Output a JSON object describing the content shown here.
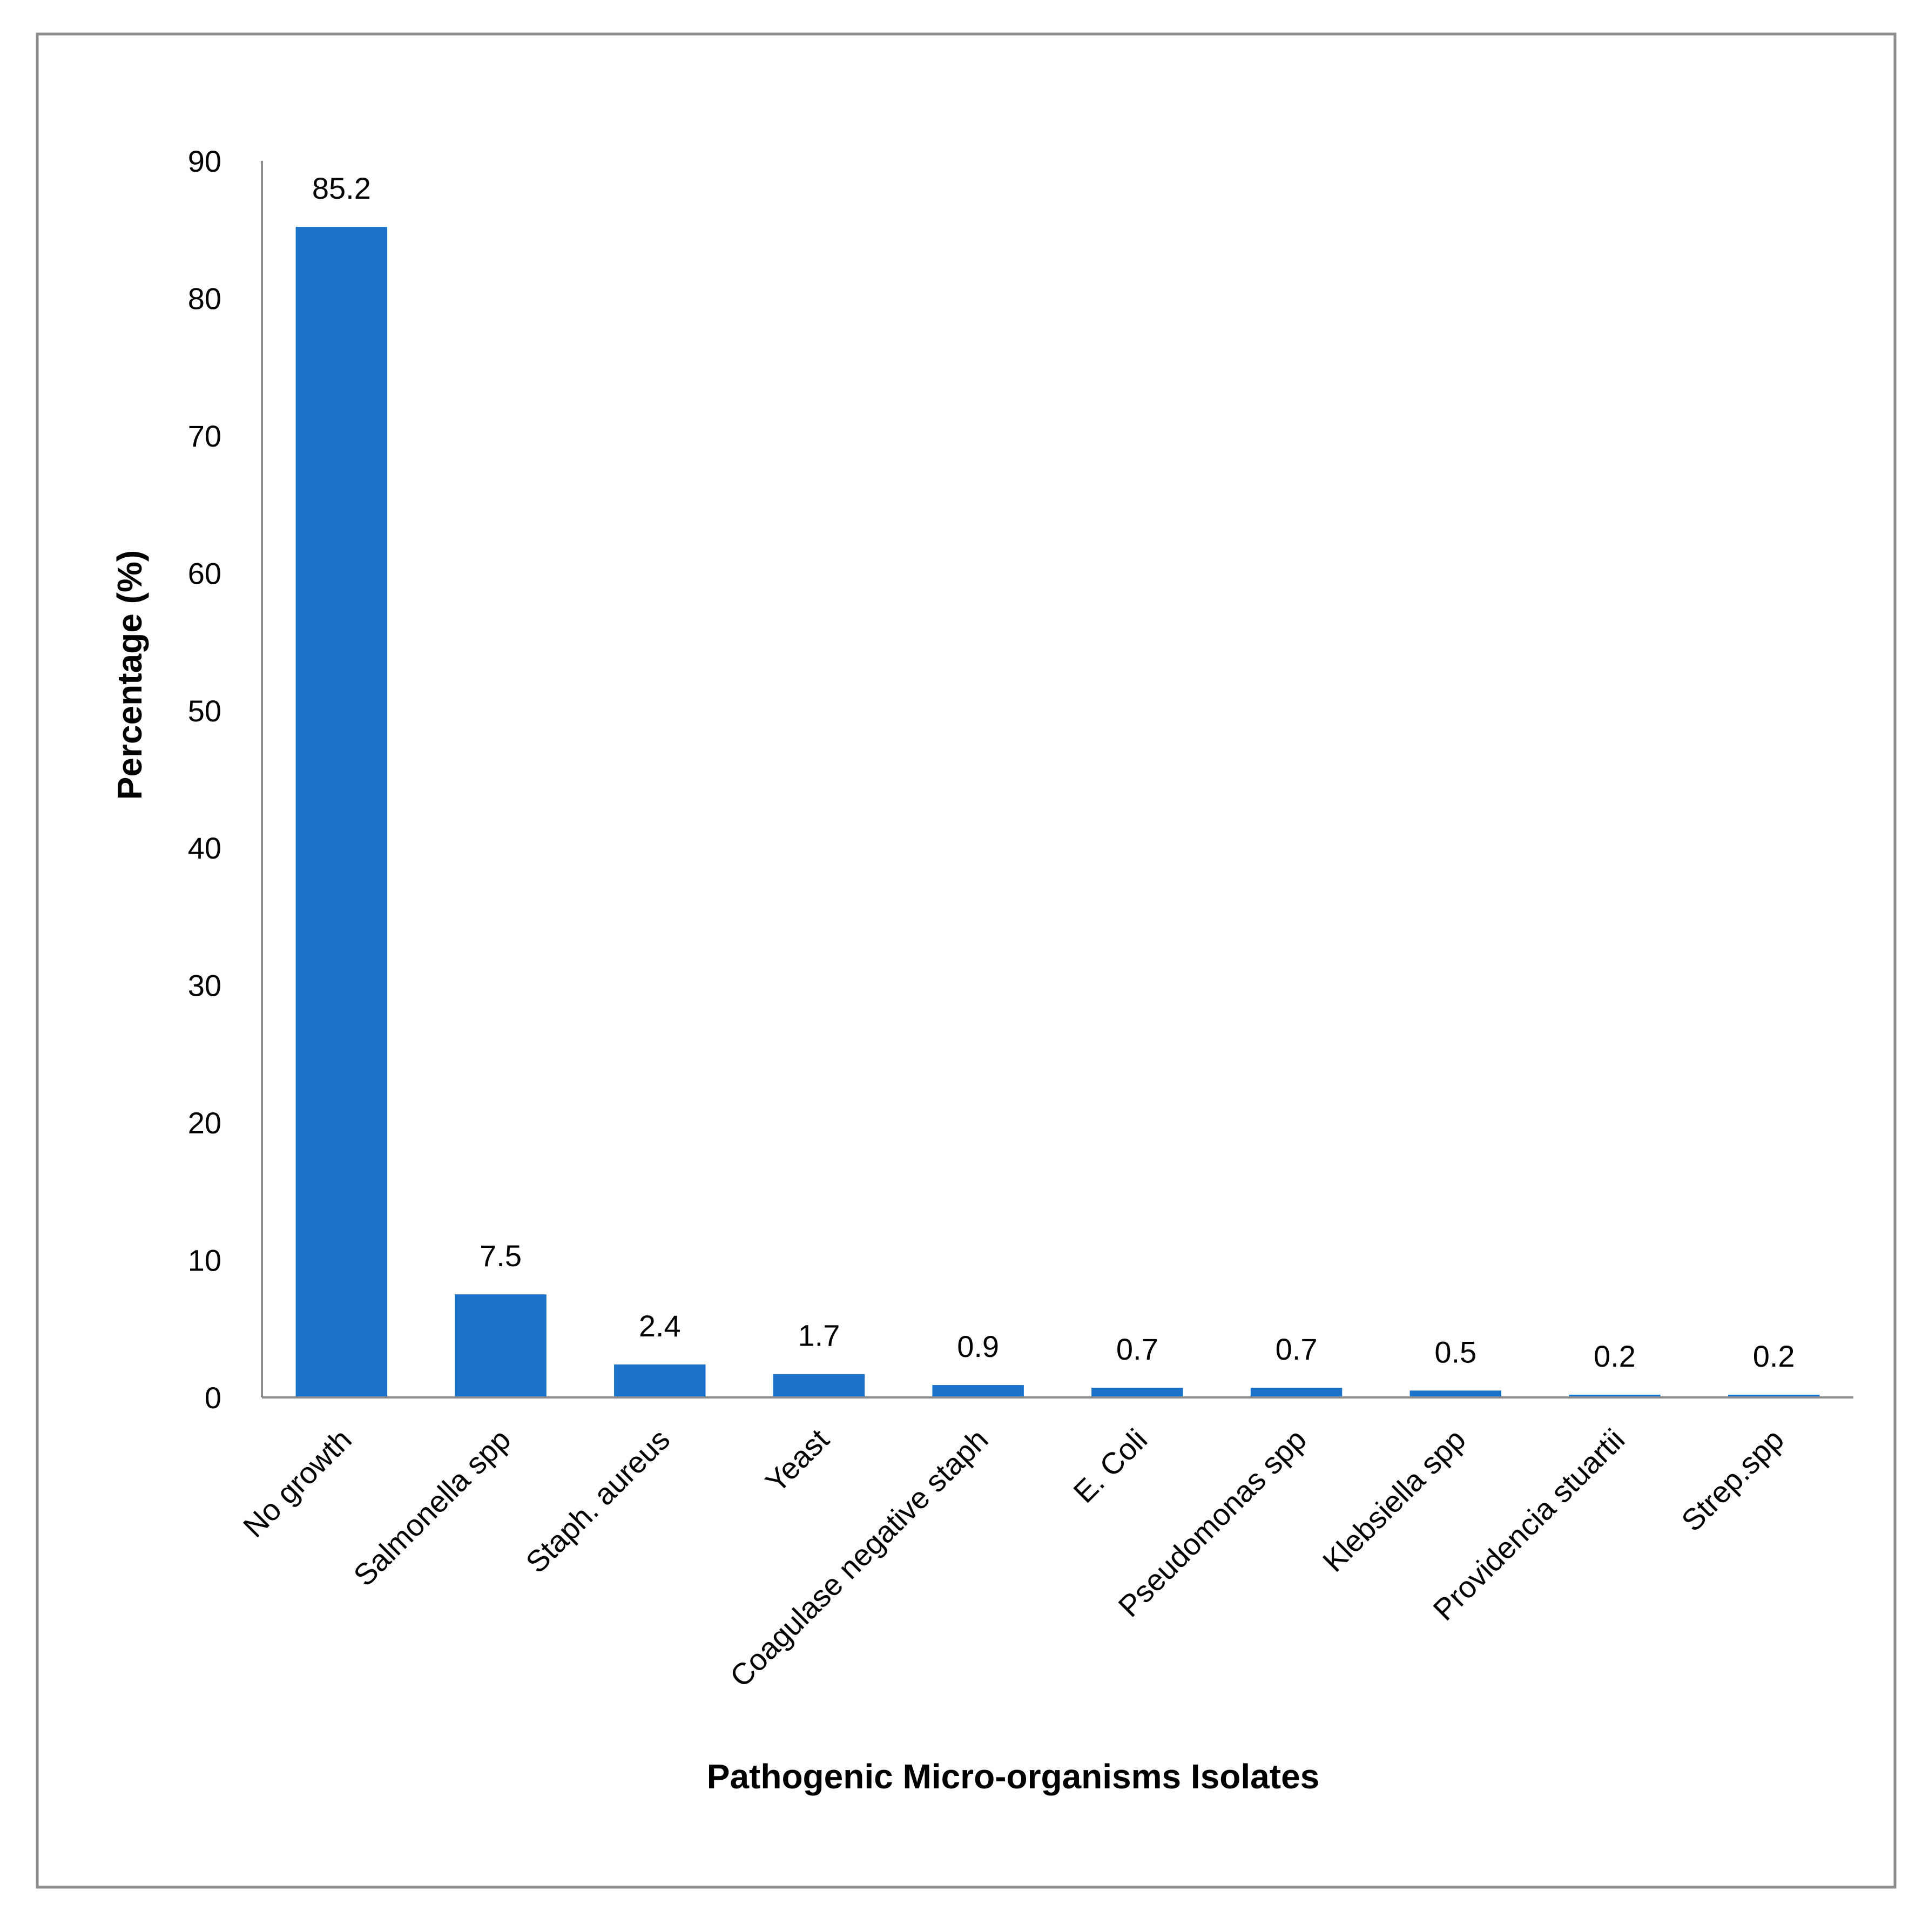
{
  "chart_data": {
    "type": "bar",
    "title": "",
    "xlabel": "Pathogenic Micro-organisms Isolates",
    "ylabel": "Percentage (%)",
    "ylim": [
      0,
      90
    ],
    "yticks": [
      0,
      10,
      20,
      30,
      40,
      50,
      60,
      70,
      80,
      90
    ],
    "categories": [
      "No growth",
      "Salmonella spp",
      "Staph. aureus",
      "Yeast",
      "Coagulase negative staph",
      "E. Coli",
      "Pseudomonas spp",
      "Klebsiella spp",
      "Providencia stuartii",
      "Strep.spp"
    ],
    "values": [
      85.2,
      7.5,
      2.4,
      1.7,
      0.9,
      0.7,
      0.7,
      0.5,
      0.2,
      0.2
    ],
    "data_labels": [
      "85.2",
      "7.5",
      "2.4",
      "1.7",
      "0.9",
      "0.7",
      "0.7",
      "0.5",
      "0.2",
      "0.2"
    ],
    "bar_color": "#1B72C8",
    "axis_color": "#8C8C8C",
    "frame_color": "#8C8C8C",
    "grid": false,
    "legend": "none"
  }
}
